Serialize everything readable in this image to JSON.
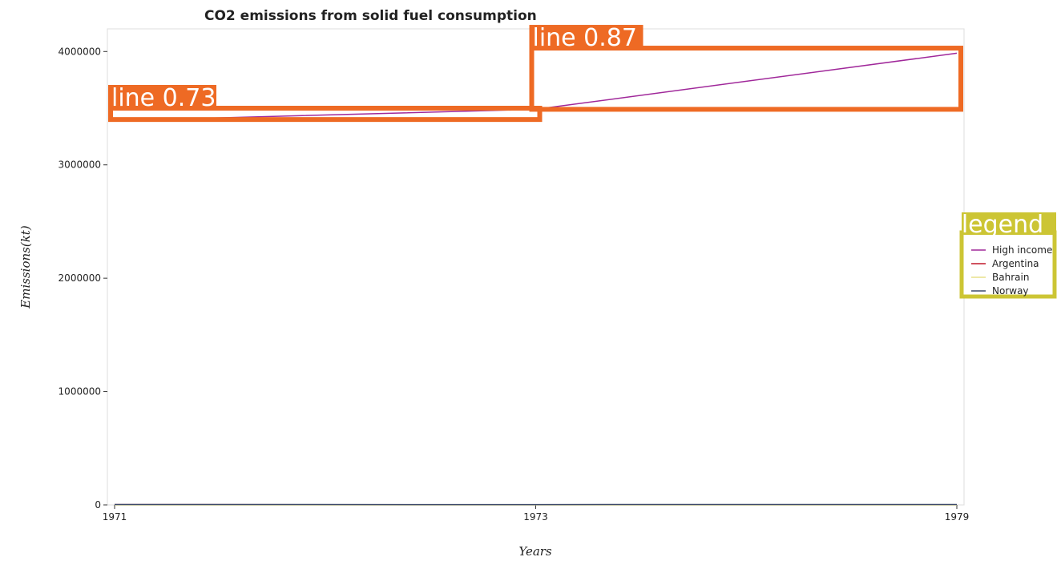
{
  "chart_data": {
    "type": "line",
    "title": "CO2 emissions from solid fuel consumption",
    "xlabel": "Years",
    "ylabel": "Emissions(kt)",
    "categories": [
      "1971",
      "1973",
      "1979"
    ],
    "ylim": [
      0,
      4200000
    ],
    "yticks": [
      0,
      1000000,
      2000000,
      3000000,
      4000000
    ],
    "ytick_labels": [
      "0",
      "1000000",
      "2000000",
      "3000000",
      "4000000"
    ],
    "grid": false,
    "legend": {
      "title": "legend",
      "placement": "right",
      "entries": [
        "High income",
        "Argentina",
        "Bahrain",
        "Norway"
      ]
    },
    "series": [
      {
        "name": "High income",
        "color": "#a0289a",
        "values": [
          3390000,
          3490000,
          3985000
        ]
      },
      {
        "name": "Argentina",
        "color": "#c0182a",
        "values": [
          2300,
          2000,
          2200
        ]
      },
      {
        "name": "Bahrain",
        "color": "#e8e08a",
        "values": [
          0,
          0,
          0
        ]
      },
      {
        "name": "Norway",
        "color": "#3d4a6b",
        "values": [
          3200,
          3000,
          3900
        ]
      }
    ],
    "annotations": [
      {
        "label": "line  0.73",
        "from_index": 0,
        "to_index": 1,
        "y_range": [
          3400000,
          3500000
        ]
      },
      {
        "label": "line  0.87",
        "from_index": 1,
        "to_index": 2,
        "y_range": [
          3490000,
          4030000
        ]
      }
    ]
  }
}
